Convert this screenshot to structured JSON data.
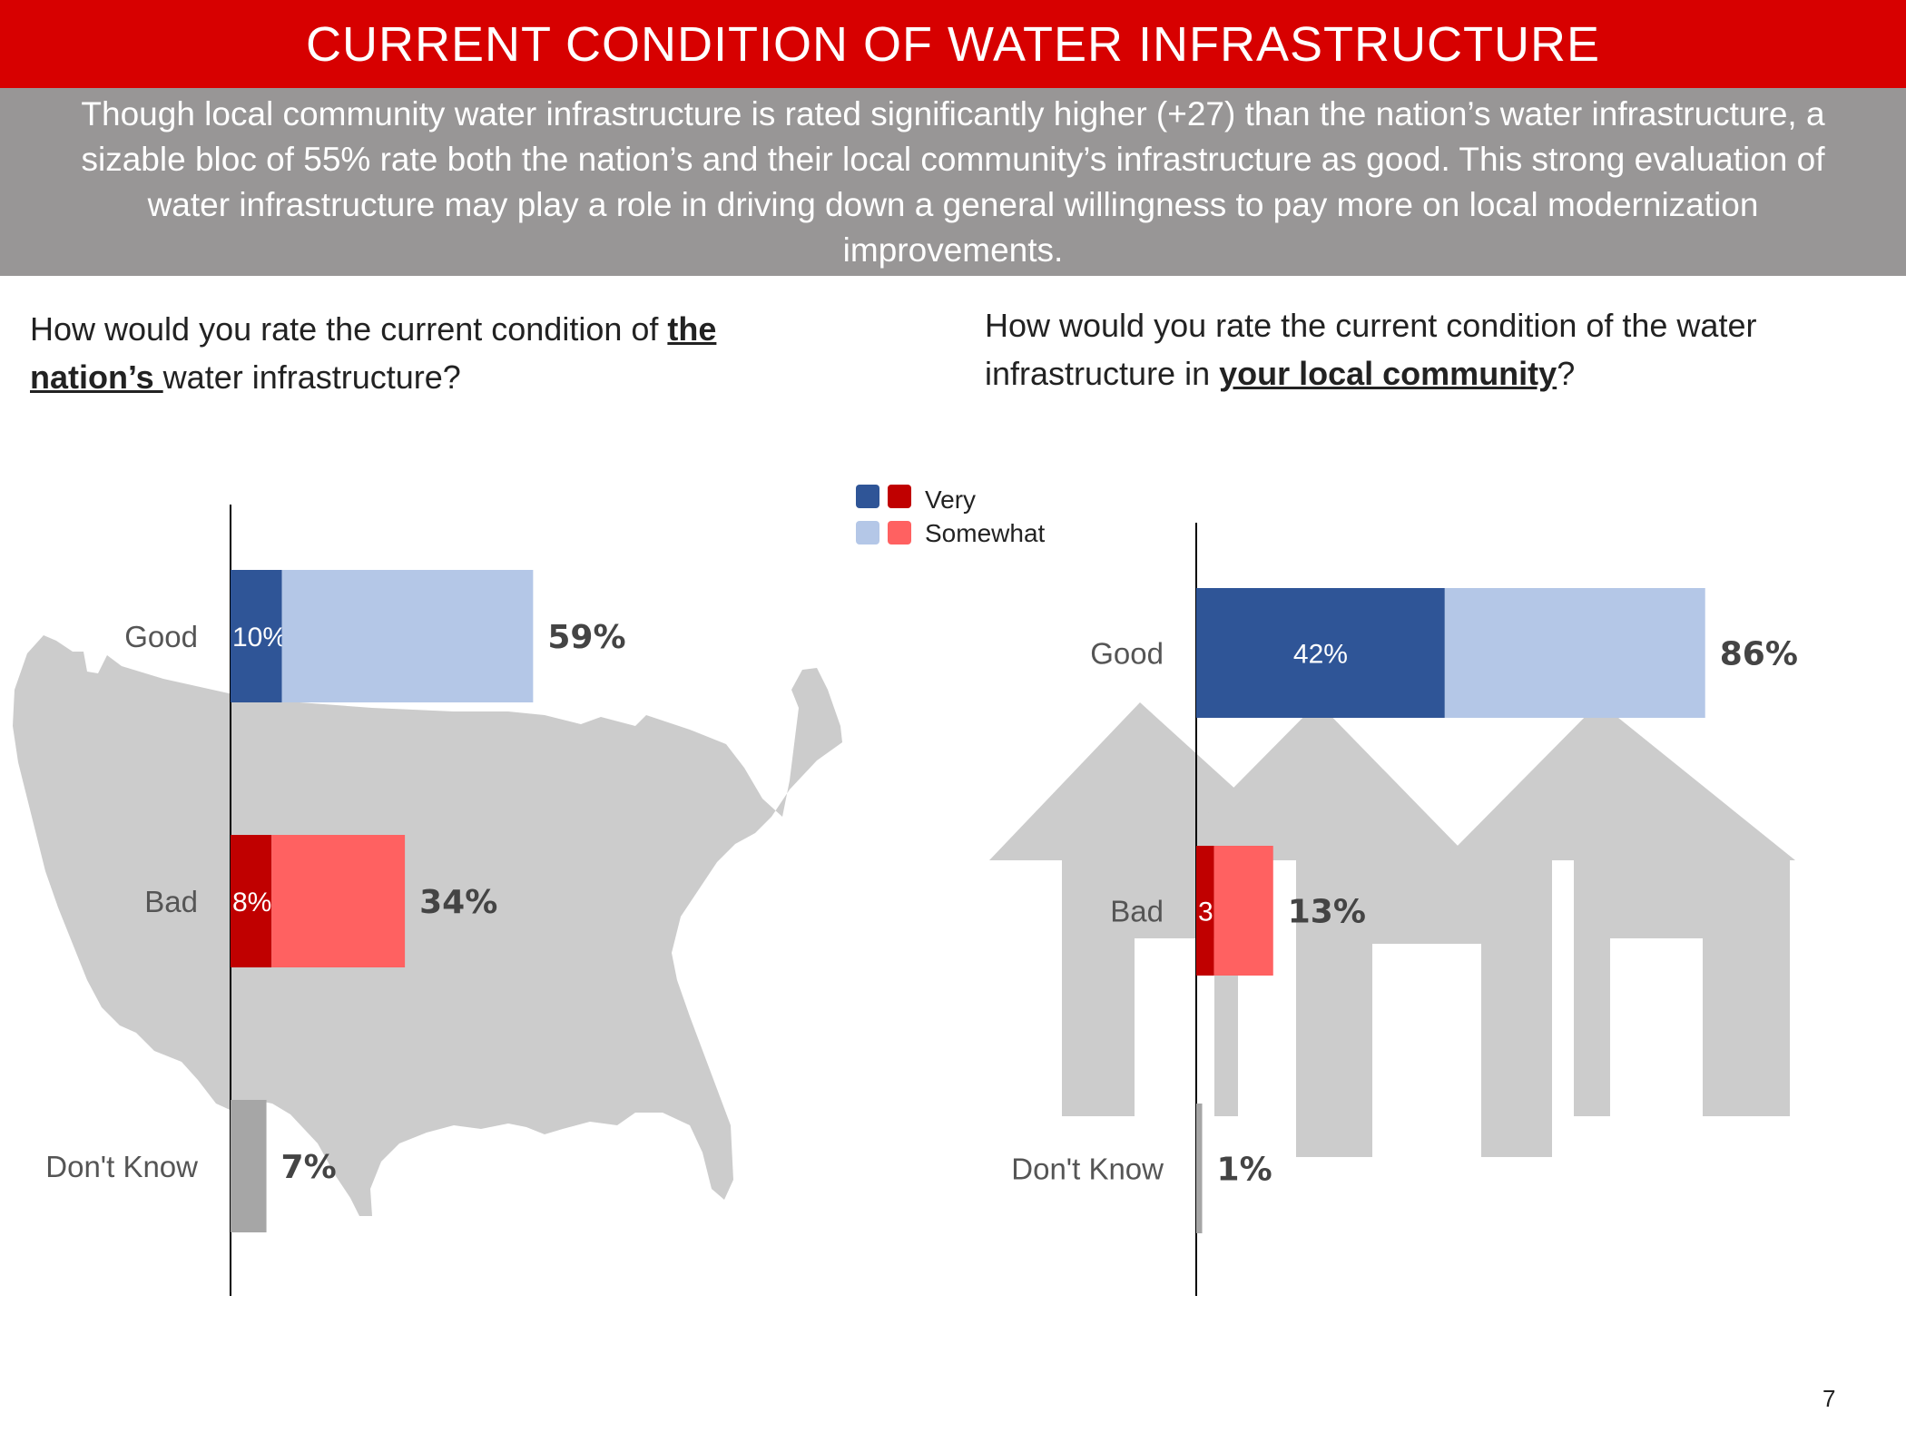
{
  "header": {
    "title": "CURRENT CONDITION OF WATER INFRASTRUCTURE",
    "summary": "Though local community water infrastructure is rated significantly higher (+27) than the nation’s water infrastructure, a sizable bloc of 55% rate both the nation’s and their local community’s infrastructure as good. This strong evaluation of water infrastructure may play a role in driving down a general willingness to pay more on local modernization improvements."
  },
  "questions": {
    "left": {
      "before": "How would you rate the current condition of ",
      "emphasis": "the nation’s ",
      "after": "water infrastructure?"
    },
    "right": {
      "before": "How would you rate the current condition of the water infrastructure in ",
      "emphasis": "your local community",
      "after": "?"
    }
  },
  "legend": {
    "very": "Very",
    "somewhat": "Somewhat"
  },
  "colors": {
    "good_very": "#2f5597",
    "good_somewhat": "#b4c7e7",
    "bad_very": "#c00000",
    "bad_somewhat": "#ff6161",
    "dont_know": "#a6a6a6",
    "background_shape": "#cccccc"
  },
  "icons": {
    "left_background": "us-map-silhouette",
    "right_background": "houses-silhouette"
  },
  "page_number": "7",
  "chart_data": [
    {
      "type": "bar",
      "orientation": "horizontal",
      "stacked": true,
      "question": "nation",
      "categories": [
        "Good",
        "Bad",
        "Don't Know"
      ],
      "very": [
        10,
        8,
        null
      ],
      "somewhat": [
        49,
        26,
        null
      ],
      "dont_know": [
        null,
        null,
        7
      ],
      "totals": [
        "59%",
        "34%",
        "7%"
      ],
      "very_labels": [
        "10%",
        "8%",
        ""
      ],
      "legend": "top-center"
    },
    {
      "type": "bar",
      "orientation": "horizontal",
      "stacked": true,
      "question": "local community",
      "categories": [
        "Good",
        "Bad",
        "Don't Know"
      ],
      "very": [
        42,
        3,
        null
      ],
      "somewhat": [
        44,
        10,
        null
      ],
      "dont_know": [
        null,
        null,
        1
      ],
      "totals": [
        "86%",
        "13%",
        "1%"
      ],
      "very_labels": [
        "42%",
        "3%",
        ""
      ],
      "legend": "top-center"
    }
  ]
}
